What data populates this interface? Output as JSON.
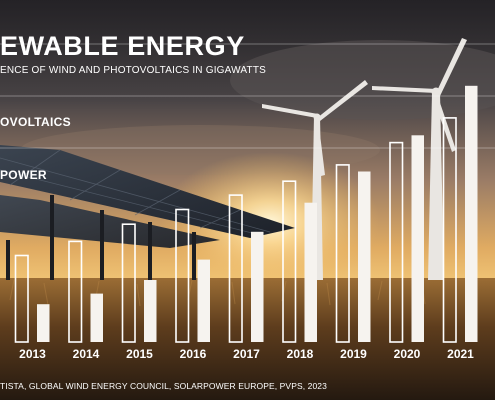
{
  "header": {
    "title": "EWABLE ENERGY",
    "subtitle": "ENCE OF WIND AND PHOTOVOLTAICS IN GIGAWATTS"
  },
  "legend": {
    "photovoltaics": "OVOLTAICS",
    "wind": "POWER"
  },
  "source": "TISTA, GLOBAL WIND ENERGY COUNCIL, SOLARPOWER EUROPE, PVPS, 2023",
  "colors": {
    "bar_outline": "#ffffff",
    "bar_fill": "#f6f3ef",
    "text": "#ffffff"
  },
  "chart_data": {
    "type": "bar",
    "categories": [
      "2013",
      "2014",
      "2015",
      "2016",
      "2017",
      "2018",
      "2019",
      "2020",
      "2021"
    ],
    "series": [
      {
        "name": "POWER",
        "style": "outline",
        "values": [
          318,
          370,
          433,
          487,
          540,
          591,
          651,
          733,
          824
        ]
      },
      {
        "name": "OVOLTAICS",
        "style": "solid",
        "values": [
          139,
          178,
          228,
          303,
          405,
          512,
          627,
          760,
          942
        ]
      }
    ],
    "ylim": [
      0,
      1000
    ],
    "grid": true
  }
}
